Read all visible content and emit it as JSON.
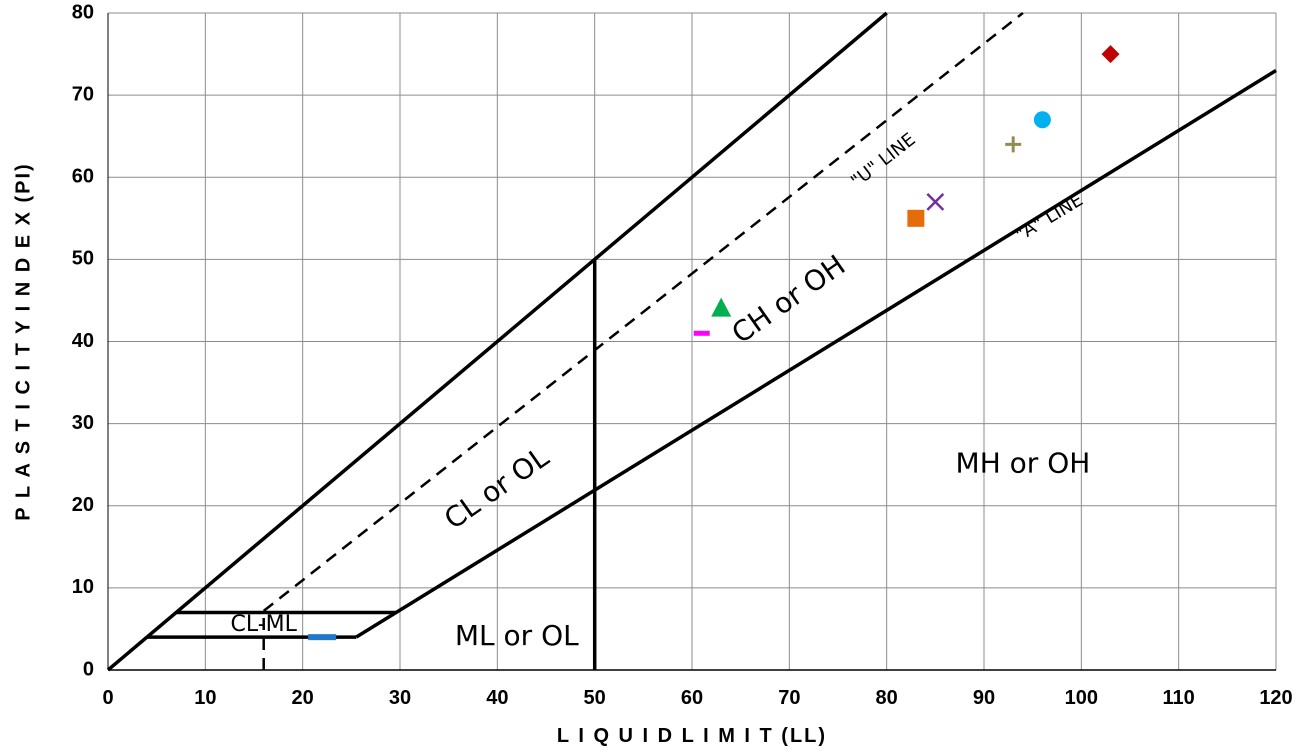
{
  "chart_data": {
    "type": "scatter",
    "title": "",
    "xlabel": "L I Q U I D  L I M I T (LL)",
    "ylabel": "P L A S T I C I T Y  I N D E X  (PI)",
    "xlim": [
      0,
      120
    ],
    "ylim": [
      0,
      80
    ],
    "x_ticks": [
      0,
      10,
      20,
      30,
      40,
      50,
      60,
      70,
      80,
      90,
      100,
      110,
      120
    ],
    "y_ticks": [
      0,
      10,
      20,
      30,
      40,
      50,
      60,
      70,
      80
    ],
    "grid": true,
    "legend": "none",
    "boundary_lines": [
      {
        "name": "\"A\" LINE",
        "style": "solid",
        "points": [
          [
            25.5,
            4
          ],
          [
            120,
            73.0
          ]
        ]
      },
      {
        "name": "\"U\" LINE",
        "style": "dashed",
        "points": [
          [
            16,
            7.2
          ],
          [
            94,
            80
          ]
        ]
      },
      {
        "name": "upper limit",
        "style": "solid",
        "points": [
          [
            0,
            0
          ],
          [
            80,
            80
          ]
        ]
      },
      {
        "name": "LL 50",
        "style": "solid",
        "points": [
          [
            50,
            0
          ],
          [
            50,
            50
          ]
        ]
      },
      {
        "name": "CL-ML top",
        "style": "solid",
        "points": [
          [
            7,
            7
          ],
          [
            29.6,
            7
          ]
        ]
      },
      {
        "name": "CL-ML bottom",
        "style": "solid",
        "points": [
          [
            4,
            4
          ],
          [
            25.5,
            4
          ]
        ]
      },
      {
        "name": "LL 16",
        "style": "dashed",
        "points": [
          [
            16,
            0
          ],
          [
            16,
            7.2
          ]
        ]
      }
    ],
    "regions": [
      {
        "label": "CL or OL",
        "x": 40,
        "y": 22
      },
      {
        "label": "CH or OH",
        "x": 70,
        "y": 45
      },
      {
        "label": "ML or OL",
        "x": 42,
        "y": 4
      },
      {
        "label": "MH or OH",
        "x": 94,
        "y": 25
      },
      {
        "label": "CL-ML",
        "x": 16,
        "y": 5.5
      }
    ],
    "series": [
      {
        "x": 22,
        "y": 4,
        "marker": "bar",
        "color": "#1f78c8"
      },
      {
        "x": 61,
        "y": 41,
        "marker": "dash",
        "color": "#ff00ff"
      },
      {
        "x": 63,
        "y": 44,
        "marker": "triangle",
        "color": "#00b050"
      },
      {
        "x": 83,
        "y": 55,
        "marker": "square",
        "color": "#e46c0a"
      },
      {
        "x": 85,
        "y": 57,
        "marker": "x",
        "color": "#7030a0"
      },
      {
        "x": 93,
        "y": 64,
        "marker": "plus",
        "color": "#948a54"
      },
      {
        "x": 96,
        "y": 67,
        "marker": "circle",
        "color": "#00b0f0"
      },
      {
        "x": 103,
        "y": 75,
        "marker": "diamond",
        "color": "#c00000"
      }
    ]
  }
}
